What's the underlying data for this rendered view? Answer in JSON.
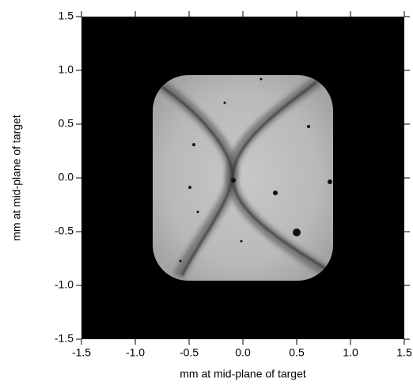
{
  "chart_data": {
    "type": "image",
    "xlabel": "mm at mid-plane of target",
    "ylabel": "mm at mid-plane of target",
    "xlim": [
      -1.5,
      1.5
    ],
    "ylim": [
      -1.5,
      1.5
    ],
    "xticks": [
      -1.5,
      {
        "value": -1,
        "label": "-1.0"
      },
      -0.5,
      {
        "value": 0,
        "label": "0.0"
      },
      0.5,
      {
        "value": 1,
        "label": "1.0"
      },
      1.5
    ],
    "yticks": [
      -1.5,
      {
        "value": -1,
        "label": "-1.0"
      },
      -0.5,
      {
        "value": 0,
        "label": "0.0"
      },
      0.5,
      {
        "value": 1,
        "label": "1.0"
      },
      1.5
    ]
  }
}
